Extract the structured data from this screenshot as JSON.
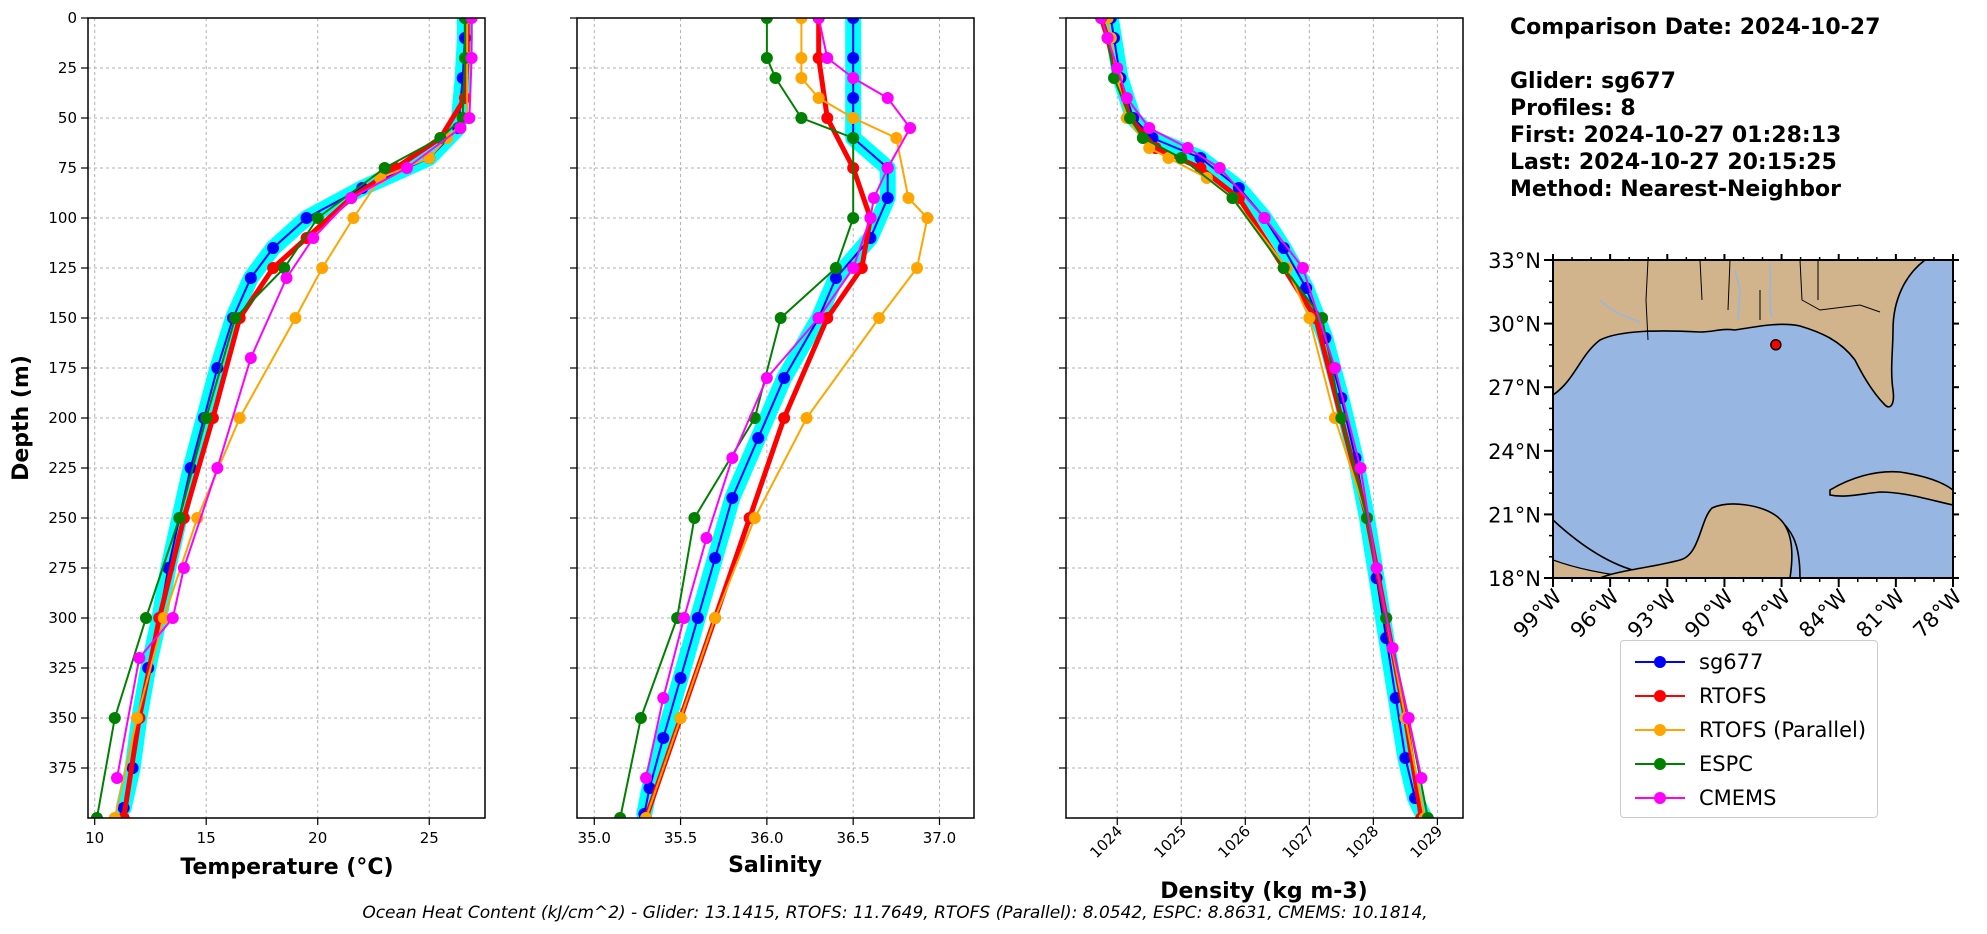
{
  "header": {
    "comparison_date": "Comparison Date: 2024-10-27",
    "glider": "Glider: sg677",
    "profiles": "Profiles: 8",
    "first": "First: 2024-10-27 01:28:13",
    "last": "Last: 2024-10-27 20:15:25",
    "method": "Method: Nearest-Neighbor"
  },
  "footer": "Ocean Heat Content (kJ/cm^2) - Glider: 13.1415,  RTOFS: 11.7649,  RTOFS (Parallel): 8.0542,  ESPC: 8.8631,  CMEMS: 10.1814,",
  "colors": {
    "glider": "#0000ff",
    "glider_spread": "#00ffff",
    "rtofs": "#ff0000",
    "rtofs_parallel": "#ffa500",
    "espc": "#008000",
    "cmems": "#ff00ff",
    "land": "#d2b48c",
    "ocean": "#97b6e1"
  },
  "legend": [
    {
      "name": "sg677",
      "color": "#0000ff"
    },
    {
      "name": "RTOFS",
      "color": "#ff0000"
    },
    {
      "name": "RTOFS (Parallel)",
      "color": "#ffa500"
    },
    {
      "name": "ESPC",
      "color": "#008000"
    },
    {
      "name": "CMEMS",
      "color": "#ff00ff"
    }
  ],
  "chart_data": [
    {
      "type": "line",
      "xlabel": "Temperature (°C)",
      "ylabel": "Depth (m)",
      "xlim": [
        9.7,
        27.5
      ],
      "ylim": [
        400,
        0
      ],
      "xticks": [
        10,
        15,
        20,
        25
      ],
      "yticks": [
        0,
        25,
        50,
        75,
        100,
        125,
        150,
        175,
        200,
        225,
        250,
        275,
        300,
        325,
        350,
        375
      ],
      "grid": true,
      "series": [
        {
          "name": "sg677",
          "x": [
            26.6,
            26.6,
            26.5,
            26.3,
            25.0,
            22.0,
            19.5,
            18.0,
            17.0,
            16.2,
            15.5,
            14.9,
            14.3,
            13.8,
            13.3,
            12.9,
            12.4,
            12.0,
            11.7,
            11.3
          ],
          "y": [
            0,
            10,
            30,
            55,
            70,
            85,
            100,
            115,
            130,
            150,
            175,
            200,
            225,
            250,
            275,
            300,
            325,
            350,
            375,
            395
          ]
        },
        {
          "name": "RTOFS",
          "x": [
            26.7,
            26.7,
            26.6,
            25.5,
            23.5,
            21.5,
            19.5,
            18.0,
            16.5,
            15.3,
            14.0,
            12.9,
            12.0,
            11.3
          ],
          "y": [
            0,
            20,
            40,
            60,
            75,
            90,
            110,
            125,
            150,
            200,
            250,
            300,
            350,
            400
          ]
        },
        {
          "name": "RTOFS (Parallel)",
          "x": [
            26.7,
            26.7,
            26.7,
            25.8,
            25.0,
            22.8,
            21.6,
            20.2,
            19.0,
            16.5,
            14.6,
            13.1,
            11.9,
            10.9
          ],
          "y": [
            0,
            20,
            50,
            60,
            70,
            80,
            100,
            125,
            150,
            200,
            250,
            300,
            350,
            400
          ]
        },
        {
          "name": "ESPC",
          "x": [
            26.6,
            26.6,
            26.5,
            25.5,
            23.0,
            20.0,
            18.5,
            16.3,
            15.0,
            13.8,
            12.3,
            10.9,
            10.1
          ],
          "y": [
            0,
            20,
            50,
            60,
            75,
            100,
            125,
            150,
            200,
            250,
            300,
            350,
            400
          ]
        },
        {
          "name": "CMEMS",
          "x": [
            26.9,
            26.9,
            26.8,
            26.4,
            24.0,
            21.5,
            19.8,
            18.6,
            17.0,
            15.5,
            14.0,
            13.5,
            12.0,
            11.0
          ],
          "y": [
            0,
            20,
            50,
            55,
            75,
            90,
            110,
            130,
            170,
            225,
            275,
            300,
            320,
            380
          ]
        }
      ]
    },
    {
      "type": "line",
      "xlabel": "Salinity",
      "ylabel": "",
      "xlim": [
        34.9,
        37.2
      ],
      "ylim": [
        400,
        0
      ],
      "xticks": [
        35.0,
        35.5,
        36.0,
        36.5,
        37.0
      ],
      "yticks": [
        0,
        25,
        50,
        75,
        100,
        125,
        150,
        175,
        200,
        225,
        250,
        275,
        300,
        325,
        350,
        375
      ],
      "grid": true,
      "series": [
        {
          "name": "sg677",
          "x": [
            36.5,
            36.5,
            36.5,
            36.5,
            36.7,
            36.7,
            36.6,
            36.4,
            36.3,
            36.1,
            35.95,
            35.8,
            35.7,
            35.6,
            35.5,
            35.4,
            35.32,
            35.29
          ],
          "y": [
            0,
            20,
            40,
            60,
            75,
            90,
            110,
            130,
            150,
            180,
            210,
            240,
            270,
            300,
            330,
            360,
            385,
            398
          ]
        },
        {
          "name": "RTOFS",
          "x": [
            36.3,
            36.3,
            36.35,
            36.5,
            36.6,
            36.55,
            36.35,
            36.1,
            35.9,
            35.7,
            35.5,
            35.3
          ],
          "y": [
            0,
            20,
            50,
            75,
            100,
            125,
            150,
            200,
            250,
            300,
            350,
            400
          ]
        },
        {
          "name": "RTOFS (Parallel)",
          "x": [
            36.2,
            36.2,
            36.2,
            36.3,
            36.5,
            36.75,
            36.82,
            36.93,
            36.87,
            36.65,
            36.23,
            35.93,
            35.7,
            35.5,
            35.3
          ],
          "y": [
            0,
            20,
            30,
            40,
            50,
            60,
            90,
            100,
            125,
            150,
            200,
            250,
            300,
            350,
            400
          ]
        },
        {
          "name": "ESPC",
          "x": [
            36.0,
            36.0,
            36.05,
            36.2,
            36.5,
            36.5,
            36.4,
            36.08,
            35.93,
            35.58,
            35.48,
            35.27,
            35.15
          ],
          "y": [
            0,
            20,
            30,
            50,
            60,
            100,
            125,
            150,
            200,
            250,
            300,
            350,
            400
          ]
        },
        {
          "name": "CMEMS",
          "x": [
            36.3,
            36.35,
            36.5,
            36.7,
            36.83,
            36.7,
            36.62,
            36.6,
            36.5,
            36.3,
            36.0,
            35.8,
            35.65,
            35.52,
            35.4,
            35.3
          ],
          "y": [
            0,
            20,
            30,
            40,
            55,
            75,
            90,
            100,
            125,
            150,
            180,
            220,
            260,
            300,
            340,
            380
          ]
        }
      ]
    },
    {
      "type": "line",
      "xlabel": "Density (kg m-3)",
      "ylabel": "",
      "xlim": [
        1023.2,
        1029.4
      ],
      "ylim": [
        400,
        0
      ],
      "xticks": [
        1024,
        1025,
        1026,
        1027,
        1028,
        1029
      ],
      "yticks": [
        0,
        25,
        50,
        75,
        100,
        125,
        150,
        175,
        200,
        225,
        250,
        275,
        300,
        325,
        350,
        375
      ],
      "grid": true,
      "series": [
        {
          "name": "sg677",
          "x": [
            1023.9,
            1023.95,
            1024.05,
            1024.25,
            1024.55,
            1025.3,
            1025.9,
            1026.3,
            1026.6,
            1026.95,
            1027.25,
            1027.5,
            1027.72,
            1027.9,
            1028.05,
            1028.2,
            1028.35,
            1028.5,
            1028.65,
            1028.8
          ],
          "y": [
            0,
            10,
            30,
            50,
            60,
            70,
            85,
            100,
            115,
            135,
            160,
            190,
            220,
            250,
            280,
            310,
            340,
            370,
            390,
            400
          ]
        },
        {
          "name": "RTOFS",
          "x": [
            1023.75,
            1023.85,
            1024.0,
            1024.2,
            1024.6,
            1025.3,
            1025.9,
            1026.6,
            1027.1,
            1027.5,
            1027.9,
            1028.2,
            1028.5,
            1028.75
          ],
          "y": [
            0,
            10,
            30,
            50,
            65,
            75,
            90,
            125,
            150,
            200,
            250,
            300,
            350,
            400
          ]
        },
        {
          "name": "RTOFS (Parallel)",
          "x": [
            1023.85,
            1023.9,
            1024.0,
            1024.15,
            1024.5,
            1024.8,
            1025.4,
            1025.8,
            1026.65,
            1027.0,
            1027.4,
            1027.9,
            1028.2,
            1028.5,
            1028.8
          ],
          "y": [
            0,
            10,
            30,
            50,
            65,
            70,
            80,
            90,
            125,
            150,
            200,
            250,
            300,
            350,
            400
          ]
        },
        {
          "name": "ESPC",
          "x": [
            1023.75,
            1023.85,
            1023.95,
            1024.2,
            1024.4,
            1025.0,
            1025.8,
            1026.6,
            1027.2,
            1027.5,
            1027.9,
            1028.2,
            1028.55,
            1028.85
          ],
          "y": [
            0,
            10,
            30,
            50,
            60,
            70,
            90,
            125,
            150,
            200,
            250,
            300,
            350,
            400
          ]
        },
        {
          "name": "CMEMS",
          "x": [
            1023.75,
            1023.85,
            1024.0,
            1024.15,
            1024.5,
            1025.1,
            1025.6,
            1026.3,
            1026.9,
            1027.4,
            1027.8,
            1028.05,
            1028.3,
            1028.55,
            1028.75
          ],
          "y": [
            0,
            10,
            25,
            40,
            55,
            65,
            75,
            100,
            125,
            175,
            225,
            275,
            315,
            350,
            380
          ]
        }
      ]
    },
    {
      "type": "map",
      "lon_ticks": [
        "99°W",
        "96°W",
        "93°W",
        "90°W",
        "87°W",
        "84°W",
        "81°W",
        "78°W"
      ],
      "lat_ticks": [
        "18°N",
        "21°N",
        "24°N",
        "27°N",
        "30°N",
        "33°N"
      ],
      "lon_range": [
        -99,
        -78
      ],
      "lat_range": [
        18,
        33
      ],
      "glider_position": {
        "lon": -87.3,
        "lat": 29.0
      }
    }
  ]
}
